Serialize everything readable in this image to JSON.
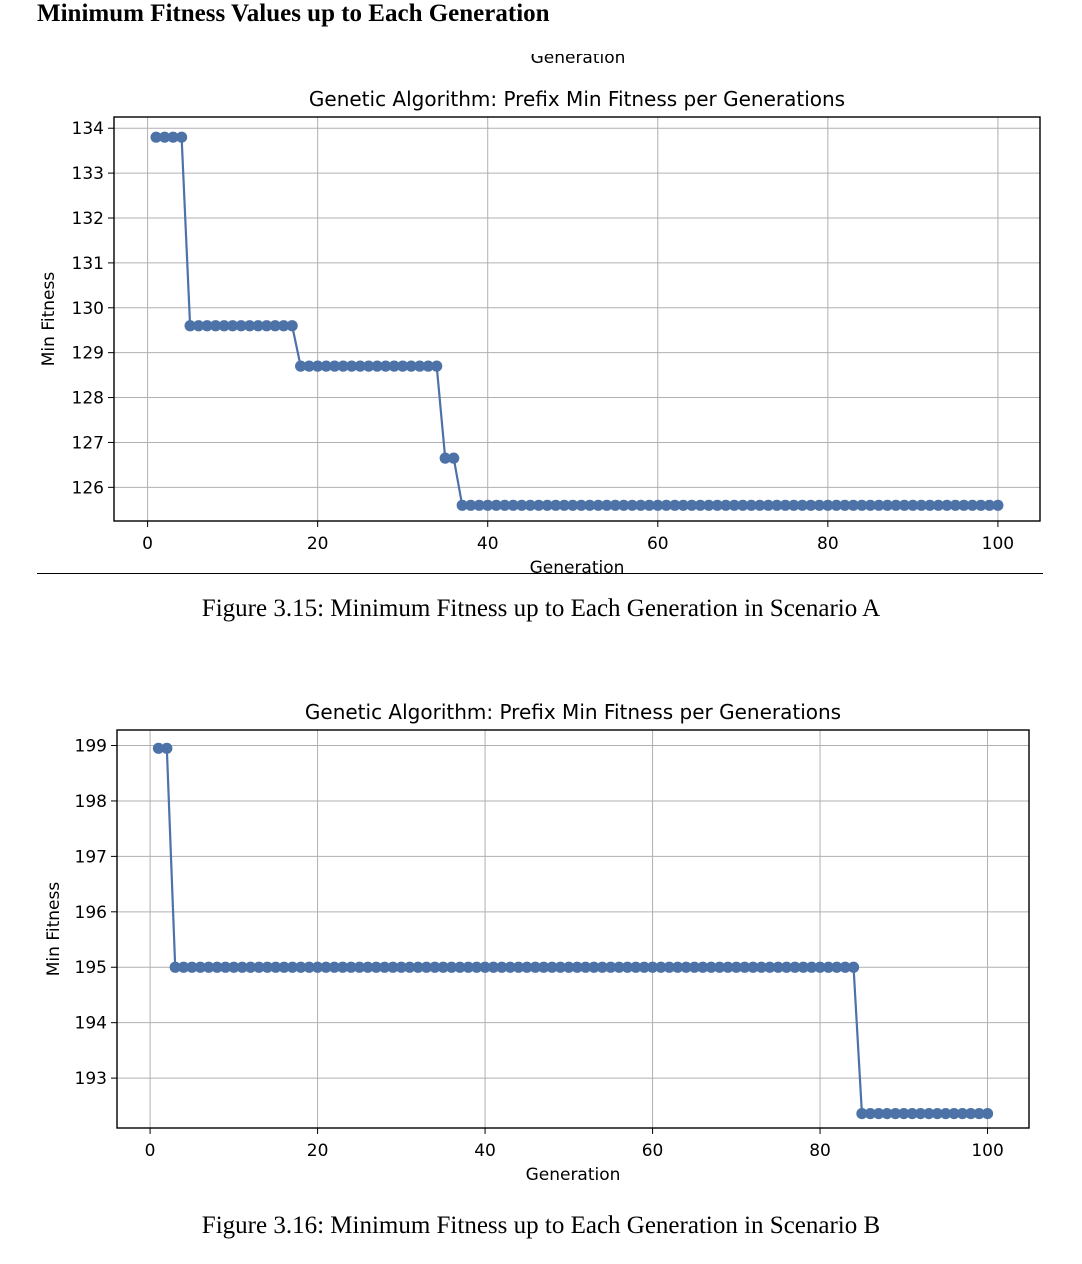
{
  "page": {
    "heading": "Minimum Fitness Values up to Each Generation",
    "caption_a": "Figure 3.15: Minimum Fitness up to Each Generation in Scenario A",
    "caption_b": "Figure 3.16: Minimum Fitness up to Each Generation in Scenario B",
    "clipped_label_a": "Generation"
  },
  "colors": {
    "series": "#4C72A8",
    "grid": "#b0b0b0",
    "axis": "#000000"
  },
  "chart_data": [
    {
      "type": "line",
      "title": "Genetic Algorithm: Prefix Min Fitness per Generations",
      "xlabel": "Generation",
      "ylabel": "Min Fitness",
      "xlim": [
        -3.95,
        104.95
      ],
      "ylim": [
        125.25,
        134.25
      ],
      "xticks": [
        0,
        20,
        40,
        60,
        80,
        100
      ],
      "yticks": [
        126,
        127,
        128,
        129,
        130,
        131,
        132,
        133,
        134
      ],
      "grid": true,
      "marker": "circle",
      "series": [
        {
          "segments": [
            {
              "from": 1,
              "to": 4,
              "value": 133.8
            },
            {
              "from": 5,
              "to": 17,
              "value": 129.6
            },
            {
              "from": 18,
              "to": 34,
              "value": 128.7
            },
            {
              "from": 35,
              "to": 36,
              "value": 126.65
            },
            {
              "from": 37,
              "to": 100,
              "value": 125.6
            }
          ]
        }
      ]
    },
    {
      "type": "line",
      "title": "Genetic Algorithm: Prefix Min Fitness per Generations",
      "xlabel": "Generation",
      "ylabel": "Min Fitness",
      "xlim": [
        -3.95,
        104.95
      ],
      "ylim": [
        192.1,
        199.28
      ],
      "xticks": [
        0,
        20,
        40,
        60,
        80,
        100
      ],
      "yticks": [
        193,
        194,
        195,
        196,
        197,
        198,
        199
      ],
      "grid": true,
      "marker": "circle",
      "series": [
        {
          "segments": [
            {
              "from": 1,
              "to": 2,
              "value": 198.95
            },
            {
              "from": 3,
              "to": 84,
              "value": 195.0
            },
            {
              "from": 85,
              "to": 100,
              "value": 192.36
            }
          ]
        }
      ]
    }
  ]
}
